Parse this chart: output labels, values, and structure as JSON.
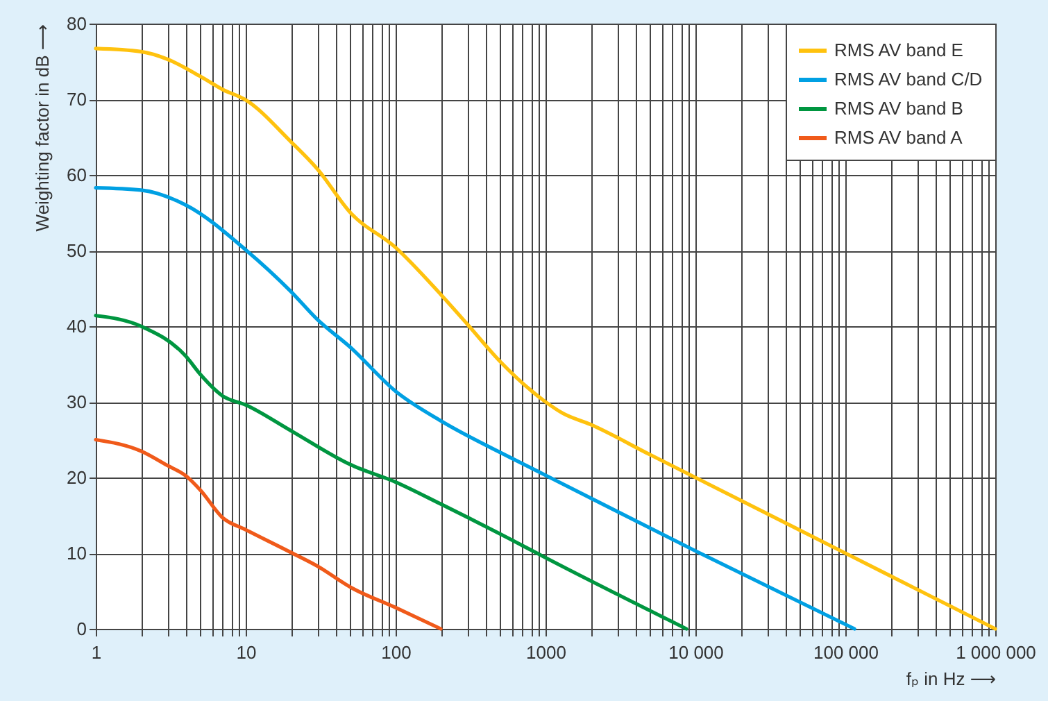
{
  "chart_data": {
    "type": "line",
    "xlabel": "fₚ in Hz ⟶",
    "ylabel": "Weighting factor in dB ⟶",
    "log": "x",
    "xlim": [
      1,
      1000000
    ],
    "xticks": [
      1,
      {
        "value": 2,
        "label": null
      },
      {
        "value": 3,
        "label": null
      },
      {
        "value": 4,
        "label": null
      },
      {
        "value": 5,
        "label": null
      },
      {
        "value": 6,
        "label": null
      },
      {
        "value": 7,
        "label": null
      },
      {
        "value": 8,
        "label": null
      },
      {
        "value": 9,
        "label": null
      },
      10,
      {
        "value": 20,
        "label": null
      },
      {
        "value": 30,
        "label": null
      },
      {
        "value": 40,
        "label": null
      },
      {
        "value": 50,
        "label": null
      },
      {
        "value": 60,
        "label": null
      },
      {
        "value": 70,
        "label": null
      },
      {
        "value": 80,
        "label": null
      },
      {
        "value": 90,
        "label": null
      },
      100,
      {
        "value": 200,
        "label": null
      },
      {
        "value": 300,
        "label": null
      },
      {
        "value": 400,
        "label": null
      },
      {
        "value": 500,
        "label": null
      },
      {
        "value": 600,
        "label": null
      },
      {
        "value": 700,
        "label": null
      },
      {
        "value": 800,
        "label": null
      },
      {
        "value": 900,
        "label": null
      },
      1000,
      {
        "value": 2000,
        "label": null
      },
      {
        "value": 3000,
        "label": null
      },
      {
        "value": 4000,
        "label": null
      },
      {
        "value": 5000,
        "label": null
      },
      {
        "value": 6000,
        "label": null
      },
      {
        "value": 7000,
        "label": null
      },
      {
        "value": 8000,
        "label": null
      },
      {
        "value": 9000,
        "label": null
      },
      {
        "value": 10000,
        "label": "10 000"
      },
      {
        "value": 20000,
        "label": null
      },
      {
        "value": 30000,
        "label": null
      },
      {
        "value": 40000,
        "label": null
      },
      {
        "value": 50000,
        "label": null
      },
      {
        "value": 60000,
        "label": null
      },
      {
        "value": 70000,
        "label": null
      },
      {
        "value": 80000,
        "label": null
      },
      {
        "value": 90000,
        "label": null
      },
      {
        "value": 100000,
        "label": "100 000"
      },
      {
        "value": 200000,
        "label": null
      },
      {
        "value": 300000,
        "label": null
      },
      {
        "value": 400000,
        "label": null
      },
      {
        "value": 500000,
        "label": null
      },
      {
        "value": 600000,
        "label": null
      },
      {
        "value": 700000,
        "label": null
      },
      {
        "value": 800000,
        "label": null
      },
      {
        "value": 900000,
        "label": null
      },
      {
        "value": 1000000,
        "label": "1 000 000"
      }
    ],
    "ylim": [
      0,
      80
    ],
    "yticks": [
      0,
      10,
      20,
      30,
      40,
      50,
      60,
      70,
      80
    ],
    "grid": true,
    "legend": "top right",
    "line_style": "solid",
    "marker": "none",
    "series": [
      {
        "name": "RMS AV band E",
        "color": "#ffc20e",
        "x": [
          1,
          2,
          3,
          5,
          7,
          10,
          20,
          30,
          50,
          100,
          200,
          300,
          500,
          1000,
          1300,
          2000,
          5000,
          10000,
          100000,
          1000000
        ],
        "values": [
          76.7,
          76.3,
          75.3,
          73,
          71.3,
          69.9,
          64.4,
          60.8,
          55,
          50.4,
          44.2,
          40.3,
          35.3,
          30,
          28.5,
          27,
          23,
          20,
          10,
          0
        ]
      },
      {
        "name": "RMS AV band C/D",
        "color": "#00a0e3",
        "x": [
          1,
          2,
          4,
          10,
          20,
          30,
          50,
          100,
          200,
          575,
          1000,
          10000,
          115000
        ],
        "values": [
          58.3,
          58,
          56,
          50.1,
          44.6,
          40.9,
          37.2,
          31.4,
          27.5,
          22.7,
          20.3,
          10.3,
          0
        ]
      },
      {
        "name": "RMS AV band B",
        "color": "#009640",
        "x": [
          1,
          2,
          4,
          5,
          7,
          10,
          20,
          50,
          100,
          200,
          575,
          1000,
          8700
        ],
        "values": [
          41.4,
          40,
          36,
          33.6,
          30.8,
          29.6,
          26.2,
          21.7,
          19.4,
          16.5,
          11.9,
          9.4,
          0
        ]
      },
      {
        "name": "RMS AV band A",
        "color": "#f05a1a",
        "x": [
          1,
          2,
          3,
          4,
          5,
          7,
          10,
          20,
          30,
          50,
          100,
          200
        ],
        "values": [
          25,
          23.5,
          21.6,
          20.2,
          18.3,
          14.7,
          13.1,
          10.1,
          8.3,
          5.5,
          2.8,
          0
        ]
      }
    ]
  }
}
